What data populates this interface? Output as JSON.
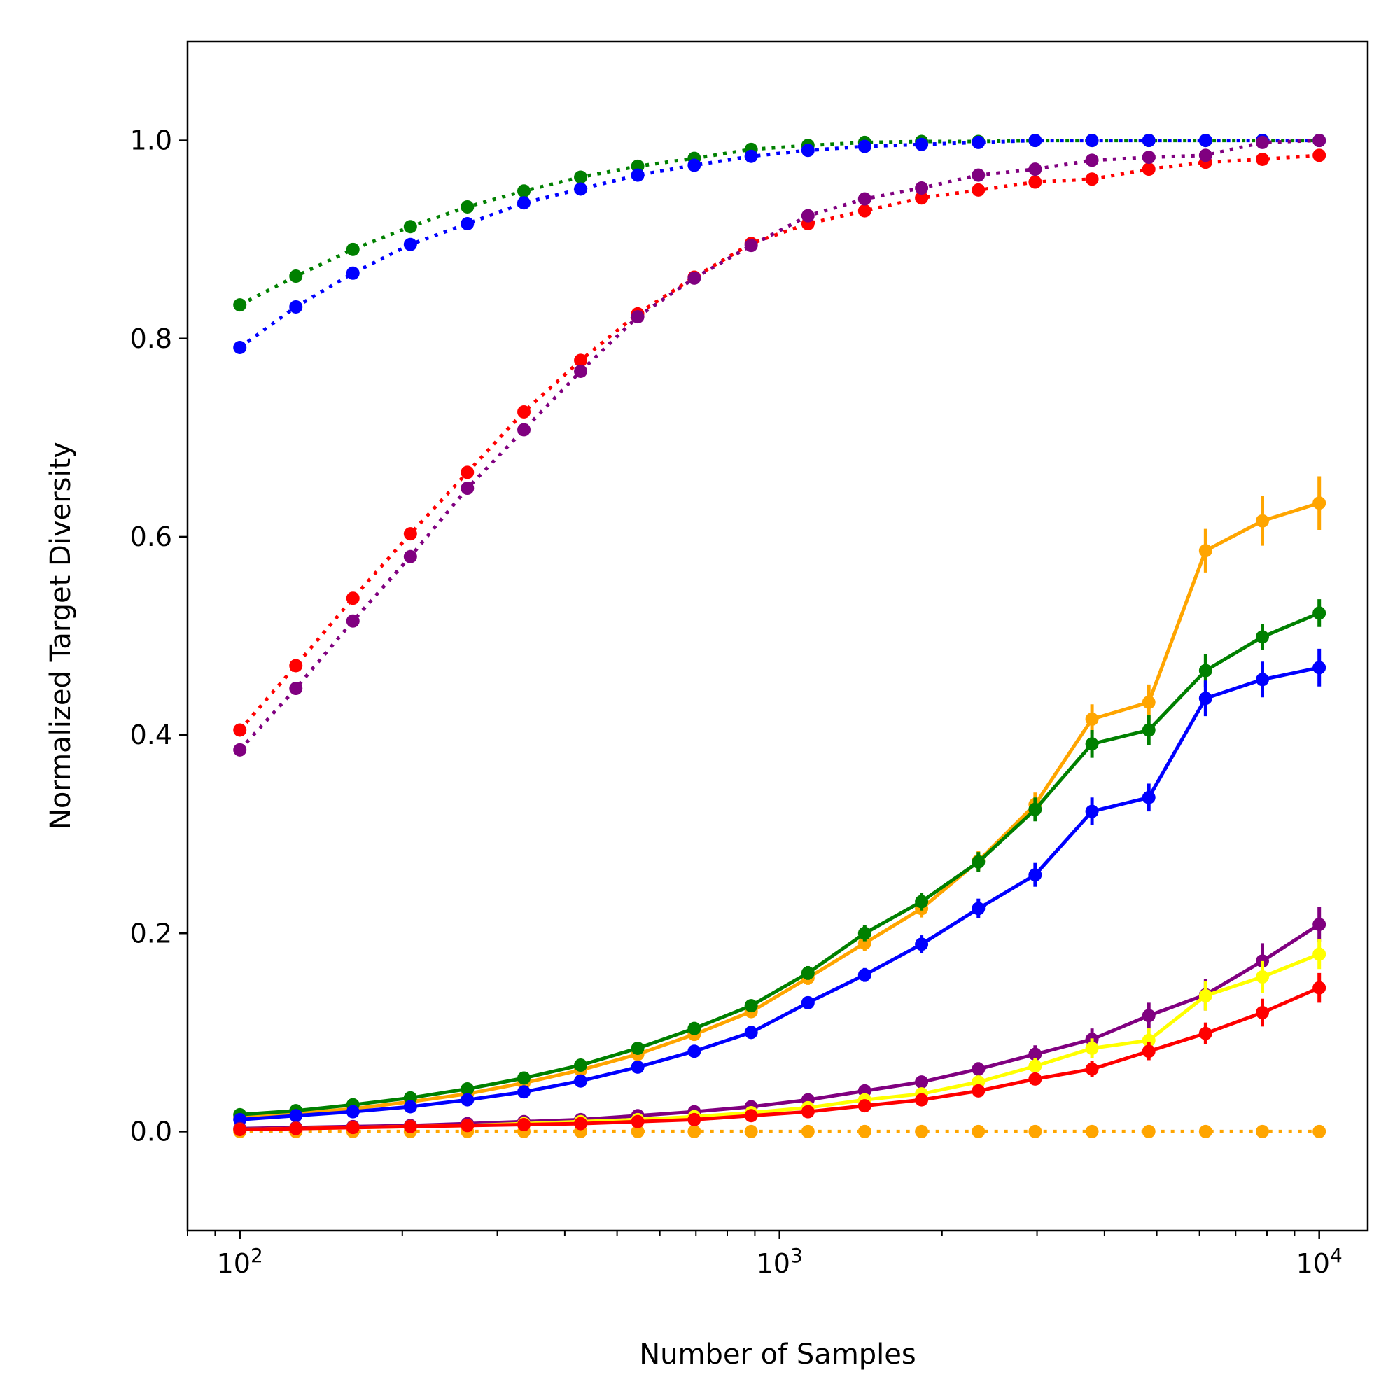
{
  "chart_data": {
    "type": "line",
    "title": "",
    "xlabel": "Number of Samples",
    "ylabel": "Normalized Target Diversity",
    "xscale": "log",
    "xlim": [
      80,
      12300
    ],
    "ylim": [
      -0.1,
      1.1
    ],
    "grid": false,
    "x": [
      100,
      127,
      162,
      207,
      264,
      336,
      428,
      546,
      695,
      886,
      1129,
      1438,
      1833,
      2336,
      2976,
      3793,
      4833,
      6158,
      7847,
      10000
    ],
    "xtick_labels": [
      {
        "value": 100,
        "base": "10",
        "exp": "2"
      },
      {
        "value": 1000,
        "base": "10",
        "exp": "3"
      },
      {
        "value": 10000,
        "base": "10",
        "exp": "4"
      }
    ],
    "yticks": [
      0.0,
      0.2,
      0.4,
      0.6,
      0.8,
      1.0
    ],
    "ytick_labels": [
      "0.0",
      "0.2",
      "0.4",
      "0.6",
      "0.8",
      "1.0"
    ],
    "series": [
      {
        "color": "#008000",
        "linestyle": "dotted",
        "values": [
          0.834,
          0.863,
          0.89,
          0.913,
          0.933,
          0.949,
          0.963,
          0.974,
          0.982,
          0.991,
          0.995,
          0.998,
          0.999,
          0.999,
          1.0,
          1.0,
          1.0,
          1.0,
          1.0,
          1.0
        ]
      },
      {
        "color": "#0000ff",
        "linestyle": "dotted",
        "values": [
          0.791,
          0.832,
          0.866,
          0.895,
          0.916,
          0.937,
          0.951,
          0.965,
          0.975,
          0.984,
          0.99,
          0.994,
          0.996,
          0.998,
          1.0,
          1.0,
          1.0,
          1.0,
          1.0,
          1.0
        ]
      },
      {
        "color": "#ff0000",
        "linestyle": "dotted",
        "values": [
          0.405,
          0.47,
          0.538,
          0.603,
          0.665,
          0.726,
          0.778,
          0.825,
          0.862,
          0.896,
          0.916,
          0.929,
          0.942,
          0.95,
          0.958,
          0.961,
          0.971,
          0.978,
          0.981,
          0.985
        ]
      },
      {
        "color": "#800080",
        "linestyle": "dotted",
        "values": [
          0.385,
          0.447,
          0.515,
          0.58,
          0.649,
          0.708,
          0.767,
          0.822,
          0.861,
          0.894,
          0.924,
          0.941,
          0.952,
          0.965,
          0.971,
          0.98,
          0.983,
          0.985,
          0.998,
          1.0
        ]
      },
      {
        "color": "#ffa500",
        "linestyle": "dotted",
        "values": [
          0,
          0,
          0,
          0,
          0,
          0,
          0,
          0,
          0,
          0,
          0,
          0,
          0,
          0,
          0,
          0,
          0,
          0,
          0,
          0
        ]
      },
      {
        "color": "#ffa500",
        "linestyle": "solid",
        "values": [
          0.014,
          0.018,
          0.023,
          0.03,
          0.038,
          0.049,
          0.062,
          0.078,
          0.098,
          0.121,
          0.155,
          0.19,
          0.225,
          0.273,
          0.33,
          0.416,
          0.433,
          0.586,
          0.616,
          0.634
        ],
        "errors": [
          0.002,
          0.002,
          0.002,
          0.002,
          0.003,
          0.003,
          0.004,
          0.004,
          0.005,
          0.006,
          0.007,
          0.008,
          0.009,
          0.01,
          0.012,
          0.015,
          0.018,
          0.022,
          0.025,
          0.027
        ]
      },
      {
        "color": "#008000",
        "linestyle": "solid",
        "values": [
          0.017,
          0.021,
          0.027,
          0.034,
          0.043,
          0.054,
          0.067,
          0.084,
          0.104,
          0.127,
          0.16,
          0.2,
          0.232,
          0.272,
          0.325,
          0.391,
          0.405,
          0.465,
          0.499,
          0.523
        ],
        "errors": [
          0.002,
          0.002,
          0.002,
          0.003,
          0.003,
          0.003,
          0.004,
          0.004,
          0.005,
          0.006,
          0.007,
          0.008,
          0.009,
          0.01,
          0.012,
          0.014,
          0.015,
          0.017,
          0.013,
          0.014
        ]
      },
      {
        "color": "#0000ff",
        "linestyle": "solid",
        "values": [
          0.012,
          0.016,
          0.02,
          0.025,
          0.032,
          0.04,
          0.051,
          0.065,
          0.081,
          0.1,
          0.13,
          0.158,
          0.189,
          0.225,
          0.259,
          0.323,
          0.337,
          0.437,
          0.456,
          0.468
        ],
        "errors": [
          0.002,
          0.002,
          0.002,
          0.002,
          0.003,
          0.003,
          0.004,
          0.004,
          0.005,
          0.005,
          0.006,
          0.007,
          0.009,
          0.01,
          0.012,
          0.014,
          0.014,
          0.018,
          0.018,
          0.019
        ]
      },
      {
        "color": "#800080",
        "linestyle": "solid",
        "values": [
          0.003,
          0.004,
          0.005,
          0.006,
          0.008,
          0.01,
          0.012,
          0.016,
          0.02,
          0.025,
          0.032,
          0.041,
          0.05,
          0.063,
          0.078,
          0.093,
          0.117,
          0.138,
          0.172,
          0.209
        ],
        "errors": [
          0.001,
          0.001,
          0.001,
          0.001,
          0.001,
          0.002,
          0.002,
          0.002,
          0.003,
          0.003,
          0.004,
          0.005,
          0.006,
          0.007,
          0.009,
          0.011,
          0.013,
          0.016,
          0.018,
          0.018
        ]
      },
      {
        "color": "#ffff00",
        "linestyle": "solid",
        "values": [
          0.002,
          0.003,
          0.004,
          0.005,
          0.006,
          0.008,
          0.01,
          0.012,
          0.015,
          0.019,
          0.024,
          0.032,
          0.038,
          0.05,
          0.066,
          0.084,
          0.092,
          0.137,
          0.156,
          0.179
        ],
        "errors": [
          0.001,
          0.001,
          0.001,
          0.001,
          0.001,
          0.001,
          0.002,
          0.002,
          0.002,
          0.003,
          0.003,
          0.004,
          0.005,
          0.006,
          0.008,
          0.01,
          0.012,
          0.015,
          0.016,
          0.015
        ]
      },
      {
        "color": "#ff0000",
        "linestyle": "solid",
        "values": [
          0.002,
          0.003,
          0.004,
          0.005,
          0.006,
          0.007,
          0.008,
          0.01,
          0.012,
          0.016,
          0.02,
          0.026,
          0.032,
          0.041,
          0.053,
          0.063,
          0.081,
          0.099,
          0.12,
          0.145
        ],
        "errors": [
          0.001,
          0.001,
          0.001,
          0.001,
          0.001,
          0.001,
          0.001,
          0.002,
          0.002,
          0.002,
          0.003,
          0.003,
          0.004,
          0.005,
          0.006,
          0.008,
          0.009,
          0.011,
          0.014,
          0.015
        ]
      }
    ]
  }
}
